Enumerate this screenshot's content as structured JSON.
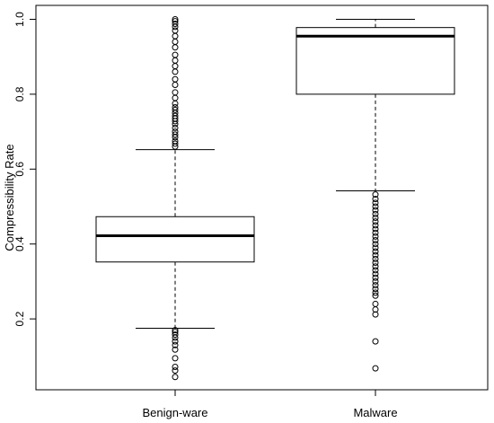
{
  "chart_data": {
    "type": "box",
    "title": "",
    "xlabel": "",
    "ylabel": "Compressibility Rate",
    "ylim": [
      0.02,
      1.02
    ],
    "y_ticks": [
      0.2,
      0.4,
      0.6,
      0.8,
      1.0
    ],
    "y_tick_labels": [
      "0.2",
      "0.4",
      "0.6",
      "0.8",
      "1.0"
    ],
    "grid": false,
    "categories": [
      "Benign-ware",
      "Malware"
    ],
    "boxes": [
      {
        "category": "Benign-ware",
        "whisker_low": 0.175,
        "q1": 0.352,
        "median": 0.422,
        "q3": 0.473,
        "whisker_high": 0.652,
        "outliers": [
          0.045,
          0.062,
          0.072,
          0.095,
          0.118,
          0.13,
          0.14,
          0.15,
          0.158,
          0.165,
          0.17,
          0.66,
          0.668,
          0.675,
          0.685,
          0.692,
          0.7,
          0.71,
          0.72,
          0.728,
          0.735,
          0.742,
          0.75,
          0.758,
          0.765,
          0.775,
          0.79,
          0.805,
          0.825,
          0.84,
          0.86,
          0.875,
          0.89,
          0.905,
          0.925,
          0.94,
          0.955,
          0.97,
          0.98,
          0.988,
          0.995,
          1.0
        ]
      },
      {
        "category": "Malware",
        "whisker_low": 0.542,
        "q1": 0.8,
        "median": 0.955,
        "q3": 0.978,
        "whisker_high": 1.0,
        "outliers": [
          0.068,
          0.14,
          0.212,
          0.225,
          0.24,
          0.262,
          0.27,
          0.28,
          0.29,
          0.3,
          0.31,
          0.32,
          0.33,
          0.34,
          0.35,
          0.36,
          0.37,
          0.38,
          0.39,
          0.4,
          0.41,
          0.42,
          0.43,
          0.44,
          0.45,
          0.46,
          0.47,
          0.48,
          0.49,
          0.5,
          0.51,
          0.52,
          0.532
        ]
      }
    ]
  }
}
